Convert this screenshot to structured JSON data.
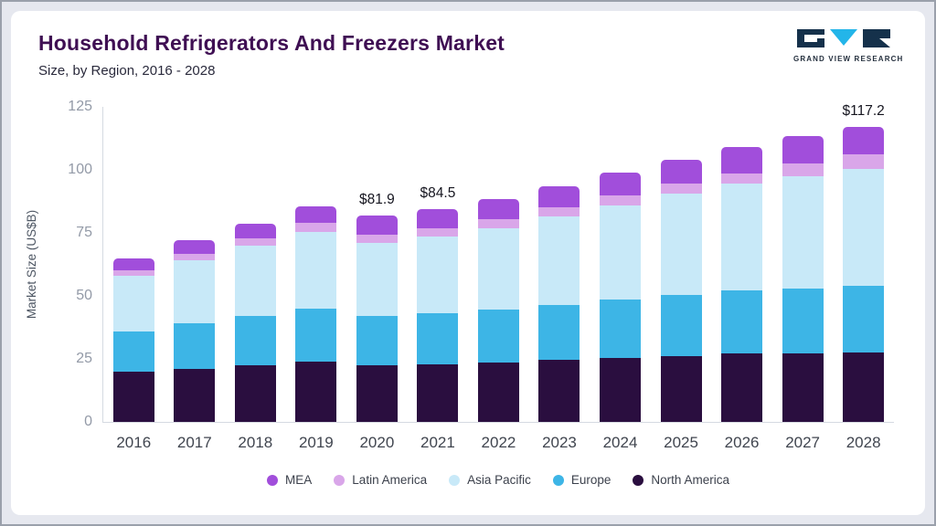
{
  "header": {
    "title": "Household Refrigerators And Freezers Market",
    "subtitle": "Size, by Region, 2016 - 2028",
    "logo_text": "GRAND VIEW RESEARCH"
  },
  "colors": {
    "title": "#3f0f53",
    "logo_dark": "#15314b",
    "logo_cyan": "#23b5e9"
  },
  "chart_data": {
    "type": "bar",
    "stacked": true,
    "title": "Household Refrigerators And Freezers Market Size, by Region, 2016 - 2028",
    "ylabel": "Market Size (US$B)",
    "ylim": [
      0,
      125
    ],
    "yticks": [
      0,
      25,
      50,
      75,
      100,
      125
    ],
    "grid": false,
    "legend_position": "bottom",
    "categories": [
      "2016",
      "2017",
      "2018",
      "2019",
      "2020",
      "2021",
      "2022",
      "2023",
      "2024",
      "2025",
      "2026",
      "2027",
      "2028"
    ],
    "series": [
      {
        "name": "North America",
        "color": "#2a0e3f",
        "values": [
          20,
          21,
          22.5,
          24,
          22.5,
          23,
          23.5,
          24.5,
          25.5,
          26,
          27,
          27,
          27.5
        ]
      },
      {
        "name": "Europe",
        "color": "#3db5e6",
        "values": [
          16,
          18,
          19.5,
          21,
          19.5,
          20,
          21,
          22,
          23,
          24.5,
          25,
          26,
          26.5
        ]
      },
      {
        "name": "Asia Pacific",
        "color": "#c8e9f8",
        "values": [
          22,
          25,
          28,
          30.5,
          29,
          30.5,
          32.5,
          35,
          37.5,
          40,
          42.5,
          44.5,
          46.5
        ]
      },
      {
        "name": "Latin America",
        "color": "#d9a6e9",
        "values": [
          2,
          2.5,
          3,
          3.5,
          3.4,
          3.5,
          3.5,
          3.5,
          4,
          4,
          4,
          5,
          5.5
        ]
      },
      {
        "name": "MEA",
        "color": "#a14edb",
        "values": [
          5,
          5.5,
          5.5,
          6.5,
          7.5,
          7.5,
          8,
          8.5,
          9,
          9.5,
          10.5,
          11,
          11.2
        ]
      }
    ],
    "totals": [
      65,
      72,
      78.5,
      85.5,
      81.9,
      84.5,
      88.5,
      93.5,
      99,
      104,
      109,
      113.5,
      117.2
    ],
    "annotations": [
      {
        "category": "2020",
        "label": "$81.9"
      },
      {
        "category": "2021",
        "label": "$84.5"
      },
      {
        "category": "2028",
        "label": "$117.2"
      }
    ],
    "legend": [
      "MEA",
      "Latin America",
      "Asia Pacific",
      "Europe",
      "North America"
    ]
  }
}
